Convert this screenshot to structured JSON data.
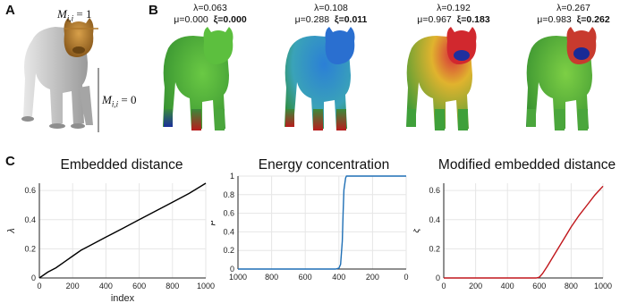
{
  "panel_labels": {
    "a": "A",
    "b": "B",
    "c": "C"
  },
  "panel_a": {
    "label_top": "M",
    "label_top_sub": "i,i",
    "label_top_rhs": " = 1",
    "label_bottom": "M",
    "label_bottom_sub": "i,i",
    "label_bottom_rhs": " = 0"
  },
  "panel_b": {
    "items": [
      {
        "lambda": "λ=0.063",
        "mu": "μ=0.000",
        "xi": "ξ=0.000"
      },
      {
        "lambda": "λ=0.108",
        "mu": "μ=0.288",
        "xi": "ξ=0.011"
      },
      {
        "lambda": "λ=0.192",
        "mu": "μ=0.967",
        "xi": "ξ=0.183"
      },
      {
        "lambda": "λ=0.267",
        "mu": "μ=0.983",
        "xi": "ξ=0.262"
      }
    ]
  },
  "colors": {
    "lambda_line": "#000000",
    "mu_line": "#1f6fb5",
    "xi_line": "#c0161b",
    "title_blue": "#1f6fb5",
    "title_red": "#c9191e",
    "cat_gray": "#c9c9c9",
    "cat_head": "#b0782a"
  },
  "chart_data": [
    {
      "type": "line",
      "title": "Embedded distance",
      "xlabel": "index",
      "ylabel": "λ",
      "xlim": [
        0,
        1000
      ],
      "ylim": [
        0,
        0.65
      ],
      "xticks": [
        "0",
        "200",
        "400",
        "600",
        "800",
        "1000"
      ],
      "yticks": [
        "0",
        "0.2",
        "0.4",
        "0.6"
      ],
      "x": [
        0,
        50,
        100,
        150,
        200,
        250,
        300,
        400,
        500,
        600,
        700,
        800,
        900,
        1000
      ],
      "y": [
        0,
        0.04,
        0.07,
        0.11,
        0.15,
        0.19,
        0.22,
        0.28,
        0.34,
        0.4,
        0.46,
        0.52,
        0.58,
        0.65
      ]
    },
    {
      "type": "line",
      "title": "Energy concentration",
      "xlabel": "",
      "ylabel": "μ",
      "xlim": [
        1000,
        0
      ],
      "ylim": [
        0,
        1
      ],
      "xticks": [
        "1000",
        "800",
        "600",
        "400",
        "200",
        "0"
      ],
      "yticks": [
        "0",
        "0.2",
        "0.4",
        "0.6",
        "0.8",
        "1"
      ],
      "x": [
        1000,
        420,
        400,
        390,
        380,
        375,
        370,
        360,
        355,
        350,
        0
      ],
      "y": [
        0,
        0,
        0.01,
        0.05,
        0.3,
        0.6,
        0.85,
        0.98,
        1.0,
        1.0,
        1.0
      ]
    },
    {
      "type": "line",
      "title": "Modified embedded distance",
      "xlabel": "",
      "ylabel": "ξ",
      "xlim": [
        0,
        1000
      ],
      "ylim": [
        0,
        0.65
      ],
      "xticks": [
        "0",
        "200",
        "400",
        "600",
        "800",
        "1000"
      ],
      "yticks": [
        "0",
        "0.2",
        "0.4",
        "0.6"
      ],
      "x": [
        0,
        580,
        600,
        620,
        650,
        700,
        750,
        800,
        850,
        900,
        950,
        1000
      ],
      "y": [
        0,
        0,
        0.005,
        0.03,
        0.08,
        0.17,
        0.26,
        0.35,
        0.43,
        0.5,
        0.57,
        0.63
      ]
    }
  ]
}
